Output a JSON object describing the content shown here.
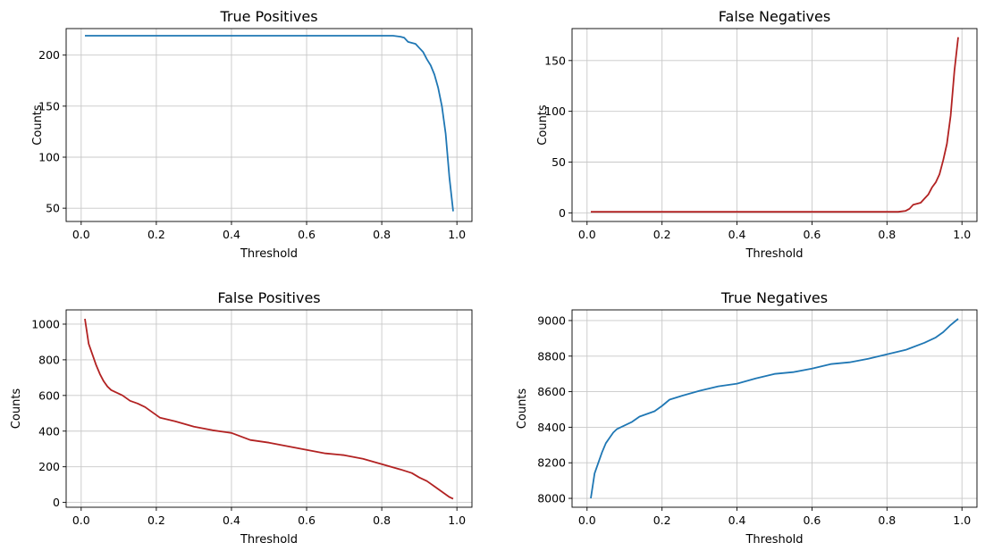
{
  "chart_data": [
    {
      "type": "line",
      "title": "True Positives",
      "xlabel": "Threshold",
      "ylabel": "Counts",
      "xlim": [
        -0.04,
        1.04
      ],
      "ylim": [
        37,
        226
      ],
      "xticks": [
        0.0,
        0.2,
        0.4,
        0.6,
        0.8,
        1.0
      ],
      "xtick_labels": [
        "0.0",
        "0.2",
        "0.4",
        "0.6",
        "0.8",
        "1.0"
      ],
      "yticks": [
        50,
        100,
        150,
        200
      ],
      "ytick_labels": [
        "50",
        "100",
        "150",
        "200"
      ],
      "grid": true,
      "color": "#1f77b4",
      "series": [
        {
          "x": [
            0.01,
            0.1,
            0.2,
            0.3,
            0.4,
            0.5,
            0.6,
            0.7,
            0.8,
            0.83,
            0.85,
            0.86,
            0.87,
            0.88,
            0.89,
            0.9,
            0.91,
            0.92,
            0.93,
            0.94,
            0.95,
            0.96,
            0.97,
            0.98,
            0.99
          ],
          "y": [
            219,
            219,
            219,
            219,
            219,
            219,
            219,
            219,
            219,
            219,
            218,
            217,
            213,
            212,
            211,
            207,
            203,
            196,
            190,
            181,
            168,
            150,
            123,
            80,
            47
          ]
        }
      ]
    },
    {
      "type": "line",
      "title": "False Negatives",
      "xlabel": "Threshold",
      "ylabel": "Counts",
      "xlim": [
        -0.04,
        1.04
      ],
      "ylim": [
        -8.5,
        181.5
      ],
      "xticks": [
        0.0,
        0.2,
        0.4,
        0.6,
        0.8,
        1.0
      ],
      "xtick_labels": [
        "0.0",
        "0.2",
        "0.4",
        "0.6",
        "0.8",
        "1.0"
      ],
      "yticks": [
        0,
        50,
        100,
        150
      ],
      "ytick_labels": [
        "0",
        "50",
        "100",
        "150"
      ],
      "grid": true,
      "color": "#b22222",
      "series": [
        {
          "x": [
            0.01,
            0.1,
            0.2,
            0.3,
            0.4,
            0.5,
            0.6,
            0.7,
            0.8,
            0.83,
            0.85,
            0.86,
            0.87,
            0.88,
            0.89,
            0.9,
            0.91,
            0.92,
            0.93,
            0.94,
            0.95,
            0.96,
            0.97,
            0.98,
            0.99
          ],
          "y": [
            1,
            1,
            1,
            1,
            1,
            1,
            1,
            1,
            1,
            1,
            2,
            4,
            8,
            9,
            10,
            14,
            18,
            25,
            30,
            38,
            52,
            68,
            96,
            140,
            173
          ]
        }
      ]
    },
    {
      "type": "line",
      "title": "False Positives",
      "xlabel": "Threshold",
      "ylabel": "Counts",
      "xlim": [
        -0.04,
        1.04
      ],
      "ylim": [
        -27,
        1080
      ],
      "xticks": [
        0.0,
        0.2,
        0.4,
        0.6,
        0.8,
        1.0
      ],
      "xtick_labels": [
        "0.0",
        "0.2",
        "0.4",
        "0.6",
        "0.8",
        "1.0"
      ],
      "yticks": [
        0,
        200,
        400,
        600,
        800,
        1000
      ],
      "ytick_labels": [
        "0",
        "200",
        "400",
        "600",
        "800",
        "1000"
      ],
      "grid": true,
      "color": "#b22222",
      "series": [
        {
          "x": [
            0.01,
            0.02,
            0.03,
            0.04,
            0.05,
            0.06,
            0.07,
            0.08,
            0.09,
            0.1,
            0.11,
            0.12,
            0.13,
            0.15,
            0.17,
            0.19,
            0.21,
            0.23,
            0.25,
            0.3,
            0.35,
            0.4,
            0.45,
            0.5,
            0.55,
            0.6,
            0.65,
            0.7,
            0.75,
            0.8,
            0.85,
            0.88,
            0.9,
            0.92,
            0.94,
            0.96,
            0.98,
            0.99
          ],
          "y": [
            1030,
            890,
            830,
            770,
            720,
            680,
            650,
            630,
            620,
            610,
            600,
            585,
            570,
            555,
            535,
            505,
            475,
            465,
            455,
            425,
            405,
            390,
            350,
            335,
            315,
            295,
            275,
            265,
            245,
            215,
            185,
            165,
            140,
            120,
            90,
            60,
            30,
            20
          ]
        }
      ]
    },
    {
      "type": "line",
      "title": "True Negatives",
      "xlabel": "Threshold",
      "ylabel": "Counts",
      "xlim": [
        -0.04,
        1.04
      ],
      "ylim": [
        7950,
        9060
      ],
      "xticks": [
        0.0,
        0.2,
        0.4,
        0.6,
        0.8,
        1.0
      ],
      "xtick_labels": [
        "0.0",
        "0.2",
        "0.4",
        "0.6",
        "0.8",
        "1.0"
      ],
      "yticks": [
        8000,
        8200,
        8400,
        8600,
        8800,
        9000
      ],
      "ytick_labels": [
        "8000",
        "8200",
        "8400",
        "8600",
        "8800",
        "9000"
      ],
      "grid": true,
      "color": "#1f77b4",
      "series": [
        {
          "x": [
            0.01,
            0.02,
            0.03,
            0.04,
            0.05,
            0.06,
            0.07,
            0.08,
            0.09,
            0.1,
            0.12,
            0.14,
            0.16,
            0.18,
            0.2,
            0.22,
            0.25,
            0.3,
            0.35,
            0.4,
            0.45,
            0.5,
            0.55,
            0.6,
            0.65,
            0.7,
            0.75,
            0.8,
            0.85,
            0.9,
            0.93,
            0.95,
            0.97,
            0.99
          ],
          "y": [
            8000,
            8140,
            8200,
            8260,
            8310,
            8340,
            8370,
            8390,
            8400,
            8410,
            8430,
            8460,
            8475,
            8490,
            8520,
            8555,
            8575,
            8605,
            8630,
            8645,
            8675,
            8700,
            8710,
            8730,
            8755,
            8765,
            8785,
            8810,
            8835,
            8875,
            8905,
            8935,
            8975,
            9010
          ]
        }
      ]
    }
  ]
}
